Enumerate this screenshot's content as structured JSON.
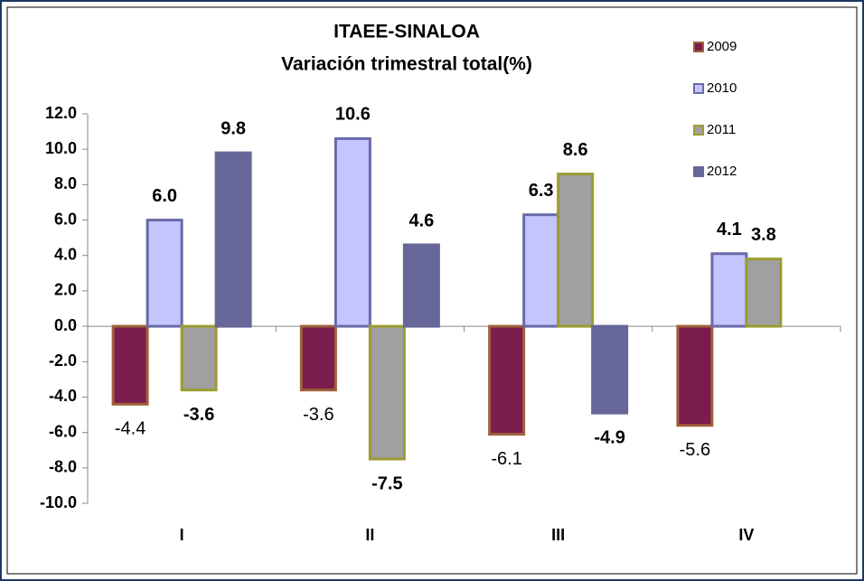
{
  "chart_data": {
    "type": "bar",
    "title": "ITAEE-SINALOA",
    "subtitle": "Variación trimestral total(%)",
    "categories": [
      "I",
      "II",
      "III",
      "IV"
    ],
    "series": [
      {
        "name": "2009",
        "color": "#7b1c4e",
        "stroke": "#a0603a",
        "values": [
          -4.4,
          -3.6,
          -6.1,
          -5.6
        ],
        "value_labels": [
          "-4.4",
          "-3.6",
          "-6.1",
          "-5.6"
        ]
      },
      {
        "name": "2010",
        "color": "#c4c4ff",
        "stroke": "#6a6aa8",
        "values": [
          6.0,
          10.6,
          6.3,
          4.1
        ],
        "value_labels": [
          "6.0",
          "10.6",
          "6.3",
          "4.1"
        ]
      },
      {
        "name": "2011",
        "color": "#a0a0a0",
        "stroke": "#9c9c30",
        "values": [
          -3.6,
          -7.5,
          8.6,
          3.8
        ],
        "value_labels": [
          "-3.6",
          "-7.5",
          "8.6",
          "3.8"
        ]
      },
      {
        "name": "2012",
        "color": "#666699",
        "stroke": "#666699",
        "values": [
          9.8,
          4.6,
          -4.9,
          null
        ],
        "value_labels": [
          "9.8",
          "4.6",
          "-4.9",
          null
        ]
      }
    ],
    "ylim": [
      -10,
      12
    ],
    "yticks": [
      {
        "value": -10,
        "label": "-10.0"
      },
      {
        "value": -8,
        "label": "-8.0"
      },
      {
        "value": -6,
        "label": "-6.0"
      },
      {
        "value": -4,
        "label": "-4.0"
      },
      {
        "value": -2,
        "label": "-2.0"
      },
      {
        "value": 0,
        "label": "0.0"
      },
      {
        "value": 2,
        "label": "2.0"
      },
      {
        "value": 4,
        "label": "4.0"
      },
      {
        "value": 6,
        "label": "6.0"
      },
      {
        "value": 8,
        "label": "8.0"
      },
      {
        "value": 10,
        "label": "10.0"
      },
      {
        "value": 12,
        "label": "12.0"
      }
    ],
    "grid": false,
    "legend": "upper right"
  }
}
